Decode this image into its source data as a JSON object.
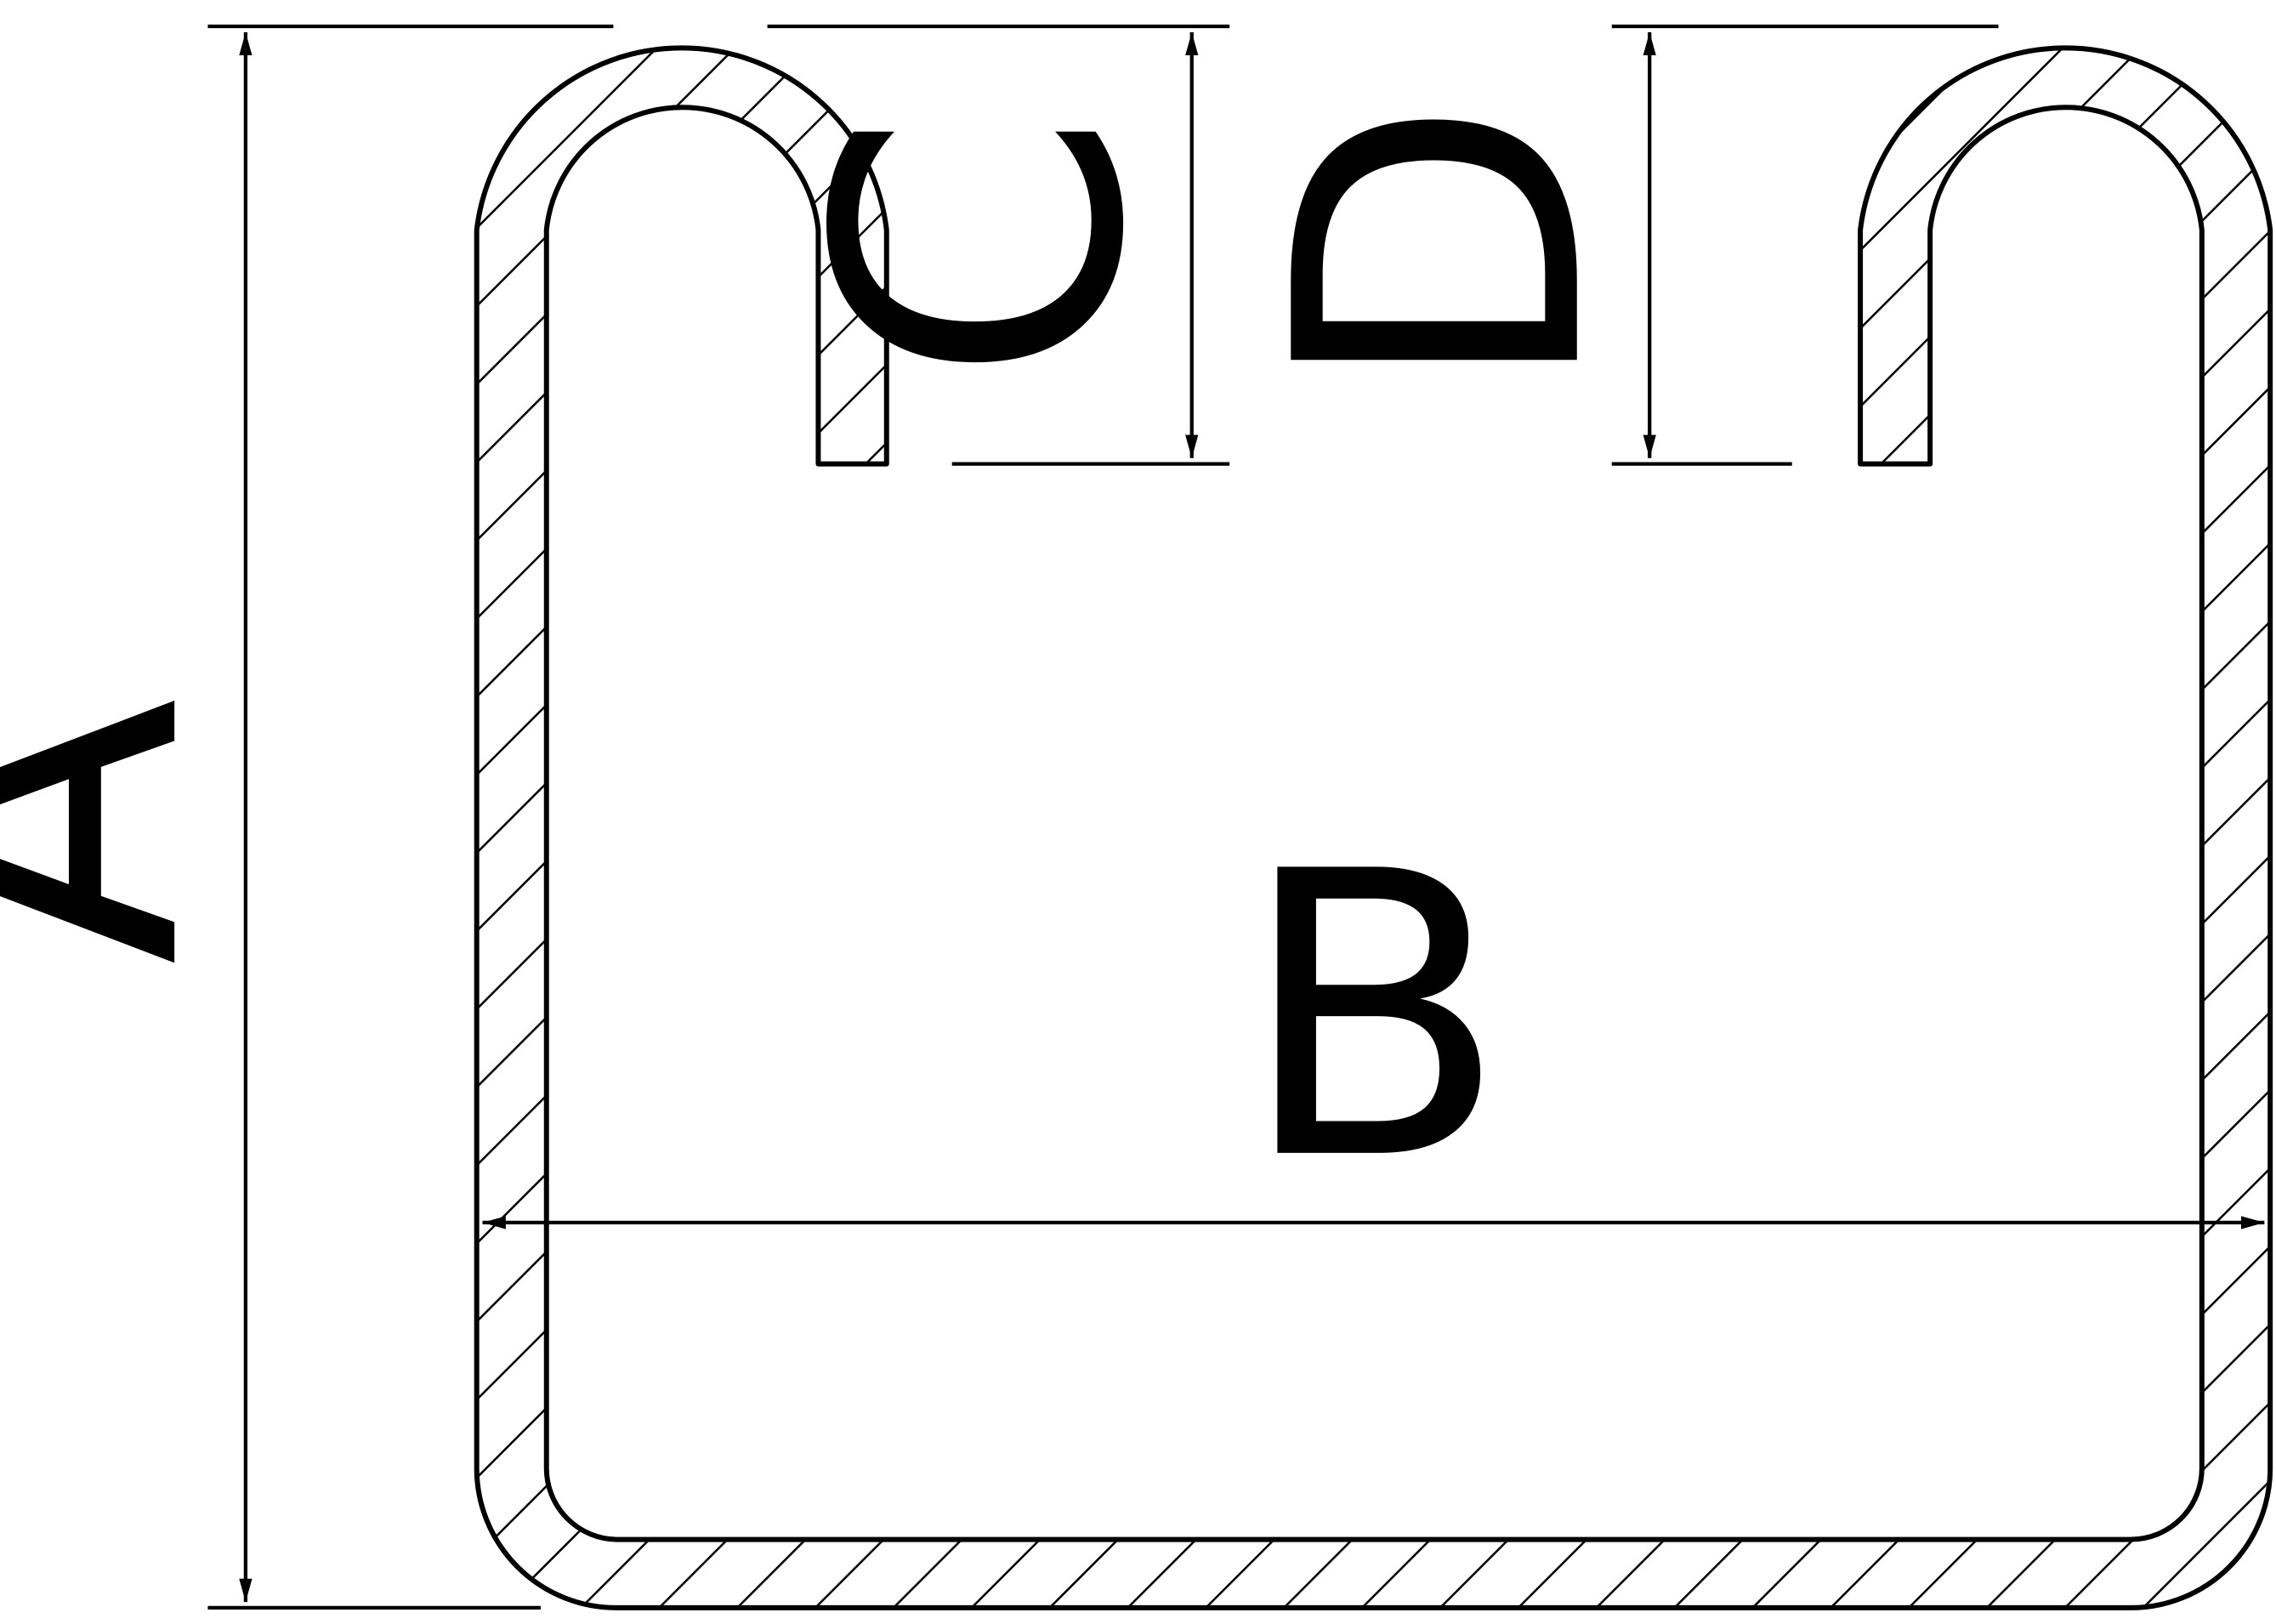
{
  "drawing": {
    "labels": {
      "height": "A",
      "width": "B",
      "left_lip": "C",
      "right_lip": "D"
    },
    "colors": {
      "line": "#000000",
      "background": "#ffffff"
    }
  }
}
